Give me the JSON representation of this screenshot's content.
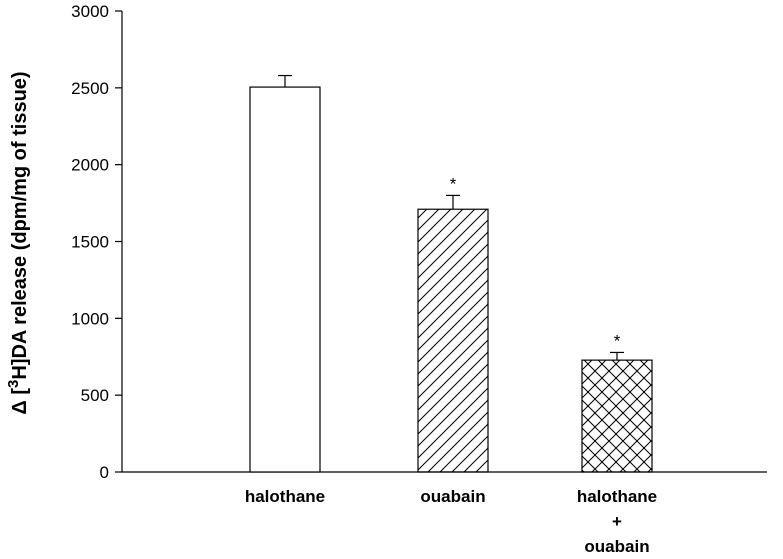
{
  "chart_data": {
    "type": "bar",
    "ylabel_parts": [
      "Δ  [",
      "3",
      "H]DA  release (dpm/mg of tissue)"
    ],
    "ylim": [
      0,
      3000
    ],
    "yticks": [
      0,
      500,
      1000,
      1500,
      2000,
      2500,
      3000
    ],
    "ytick_labels": [
      "0",
      "500",
      "1000",
      "1500",
      "2000",
      "2500",
      "3000"
    ],
    "categories": [
      [
        "halothane"
      ],
      [
        "ouabain"
      ],
      [
        "halothane",
        "+",
        "ouabain"
      ]
    ],
    "values": [
      2505,
      1710,
      728
    ],
    "errors": [
      75,
      90,
      50
    ],
    "significance": [
      "",
      "*",
      "*"
    ],
    "fills": [
      "none",
      "diagonal-hatch",
      "cross-hatch"
    ],
    "colors": {
      "stroke": "#000000",
      "background": "#ffffff"
    }
  }
}
